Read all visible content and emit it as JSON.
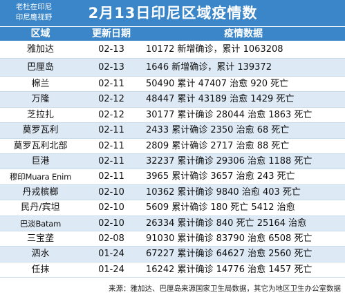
{
  "header": {
    "brand_line1": "老杜在印尼",
    "brand_line2": "印尼鹰视野",
    "title": "2月13日印尼区域疫情数据"
  },
  "table": {
    "headers": [
      "区域",
      "更新日期",
      "疫情数据"
    ],
    "rows": [
      {
        "region": "雅加达",
        "date": "02-13",
        "data": "10172 新增确诊，累计 1063208"
      },
      {
        "region": "巴厘岛",
        "date": "02-13",
        "data": "1646 新增确诊，累计 139372"
      },
      {
        "region": "棉兰",
        "date": "02-11",
        "data": "50490 累计 47407 治愈 920 死亡"
      },
      {
        "region": "万隆",
        "date": "02-12",
        "data": "48447 累计 43189 治愈 1429 死亡"
      },
      {
        "region": "芝拉扎",
        "date": "02-12",
        "data": "30177 累计确诊 28044 治愈 1863 死亡"
      },
      {
        "region": "莫罗瓦利",
        "date": "02-11",
        "data": "2433 累计确诊 2350 治愈 68 死亡"
      },
      {
        "region": "莫罗瓦利北部",
        "date": "02-11",
        "data": "2809 累计确诊 2717 治愈 88 死亡"
      },
      {
        "region": "巨港",
        "date": "02-11",
        "data": "32237 累计确诊 29306 治愈 1188 死亡"
      },
      {
        "region": "穆印Muara Enim",
        "date": "02-11",
        "data": "3965 累计确诊 3657 治愈 243 死亡"
      },
      {
        "region": "丹戎槟榔",
        "date": "02-10",
        "data": "10362 累计确诊 9840 治愈 403 死亡"
      },
      {
        "region": "民丹/宾坦",
        "date": "02-10",
        "data": "5609 累计确诊 180 死亡 5412 治愈"
      },
      {
        "region": "巴淡Batam",
        "date": "02-10",
        "data": "26334 累计确诊 840 死亡 25164 治愈"
      },
      {
        "region": "三宝垄",
        "date": "02-08",
        "data": "91030 累计确诊 83790 治愈 6508 死亡"
      },
      {
        "region": "泗水",
        "date": "01-24",
        "data": "67227 累计确诊 64627 治愈 2560 死亡"
      },
      {
        "region": "任抹",
        "date": "01-24",
        "data": "16242 累计确诊 14776 治愈 1457 死亡"
      }
    ]
  },
  "footer": {
    "source": "来源：雅加达、巴厘岛来源国家卫生局数据，其它为地区卫生办公室数据"
  },
  "colors": {
    "header_bg": "#3a86c9",
    "row_alt": "#dde9f5"
  }
}
